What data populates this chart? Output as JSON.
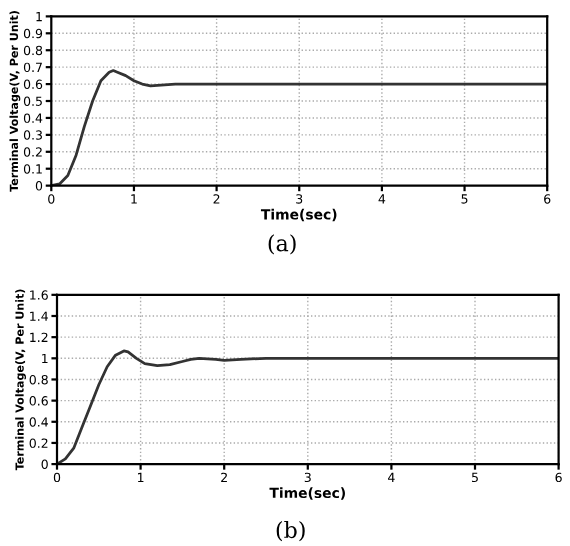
{
  "chart_data": [
    {
      "type": "line",
      "xlabel": "Time(sec)",
      "ylabel": "Terminal Voltage(V, Per Unit)",
      "annotations": [
        "(a)"
      ],
      "xlim": [
        0,
        6
      ],
      "xticks": [
        0,
        1,
        2,
        3,
        4,
        5,
        6
      ],
      "ylim": [
        0,
        1
      ],
      "yticks": [
        0,
        0.1,
        0.2,
        0.3,
        0.4,
        0.5,
        0.6,
        0.7,
        0.8,
        0.9,
        1
      ],
      "grid": true,
      "series": [
        {
          "color": "#333333",
          "x": [
            0,
            0.1,
            0.2,
            0.3,
            0.4,
            0.5,
            0.6,
            0.7,
            0.75,
            0.8,
            0.9,
            1.0,
            1.1,
            1.2,
            1.5,
            2,
            3,
            4,
            5,
            6
          ],
          "values": [
            0,
            0.01,
            0.06,
            0.18,
            0.35,
            0.5,
            0.62,
            0.67,
            0.68,
            0.67,
            0.65,
            0.62,
            0.6,
            0.59,
            0.6,
            0.6,
            0.6,
            0.6,
            0.6,
            0.6
          ]
        }
      ]
    },
    {
      "type": "line",
      "xlabel": "Time(sec)",
      "ylabel": "Terminal Voltage(V, Per Unit)",
      "annotations": [
        "(b)"
      ],
      "xlim": [
        0,
        6
      ],
      "xticks": [
        0,
        1,
        2,
        3,
        4,
        5,
        6
      ],
      "ylim": [
        0,
        1.6
      ],
      "yticks": [
        0,
        0.2,
        0.4,
        0.6,
        0.8,
        1,
        1.2,
        1.4,
        1.6
      ],
      "grid": true,
      "series": [
        {
          "color": "#333333",
          "x": [
            0,
            0.1,
            0.2,
            0.3,
            0.4,
            0.5,
            0.6,
            0.7,
            0.8,
            0.85,
            0.95,
            1.05,
            1.2,
            1.35,
            1.5,
            1.6,
            1.7,
            1.9,
            2.0,
            2.2,
            2.5,
            3,
            4,
            5,
            6
          ],
          "values": [
            0,
            0.05,
            0.15,
            0.35,
            0.55,
            0.75,
            0.92,
            1.03,
            1.07,
            1.06,
            1.0,
            0.95,
            0.93,
            0.94,
            0.97,
            0.99,
            1.0,
            0.99,
            0.98,
            0.99,
            1.0,
            1.0,
            1.0,
            1.0,
            1.0
          ]
        }
      ]
    }
  ]
}
